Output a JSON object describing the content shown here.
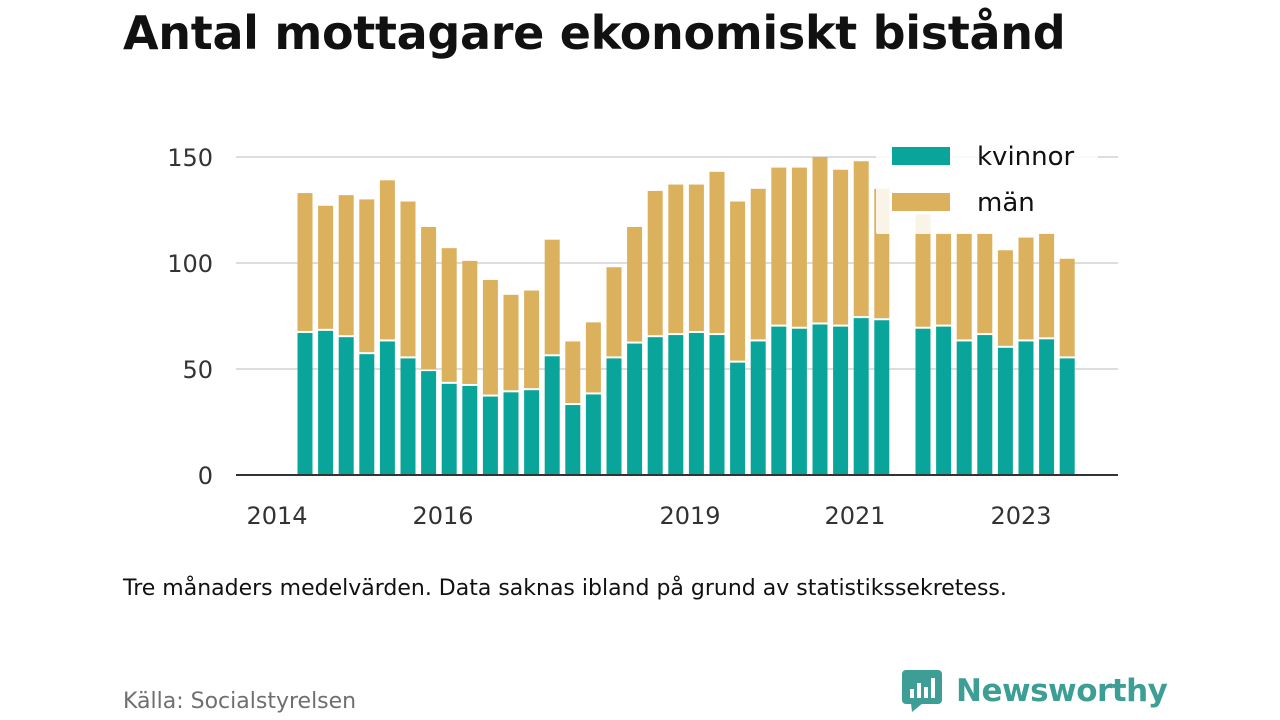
{
  "title": "Antal mottagare ekonomiskt bistånd",
  "caption": "Tre månaders medelvärden. Data saknas ibland på grund av statistikssekretess.",
  "source": "Källa: Socialstyrelsen",
  "brand": {
    "name": "Newsworthy",
    "icon": "bar-chart-speech-bubble-icon"
  },
  "colors": {
    "kvinnor": "#0aa59a",
    "man": "#dbb15e",
    "grid": "#dddddd",
    "axis": "#333333",
    "text": "#111111",
    "source": "#6f6f6f",
    "brand": "#3c9e94"
  },
  "chart_data": {
    "type": "bar",
    "stacked": true,
    "x_tick_labels": [
      "2014",
      "2016",
      "2019",
      "2021",
      "2023"
    ],
    "y_ticks": [
      0,
      50,
      100,
      150
    ],
    "ylim": [
      0,
      150
    ],
    "grid": true,
    "legend": {
      "placement": "top-right"
    },
    "series": [
      {
        "name": "kvinnor",
        "values": [
          67,
          68,
          65,
          57,
          63,
          55,
          49,
          43,
          42,
          37,
          39,
          40,
          56,
          33,
          38,
          55,
          62,
          65,
          66,
          67,
          66,
          53,
          63,
          70,
          69,
          71,
          70,
          74,
          73,
          null,
          69,
          70,
          63,
          66,
          60,
          63,
          64,
          55
        ]
      },
      {
        "name": "män",
        "values": [
          66,
          59,
          67,
          73,
          76,
          74,
          68,
          64,
          59,
          55,
          46,
          47,
          55,
          30,
          34,
          43,
          55,
          69,
          71,
          70,
          77,
          76,
          72,
          75,
          76,
          79,
          74,
          74,
          62,
          null,
          54,
          44,
          51,
          48,
          46,
          49,
          50,
          47
        ]
      }
    ]
  }
}
